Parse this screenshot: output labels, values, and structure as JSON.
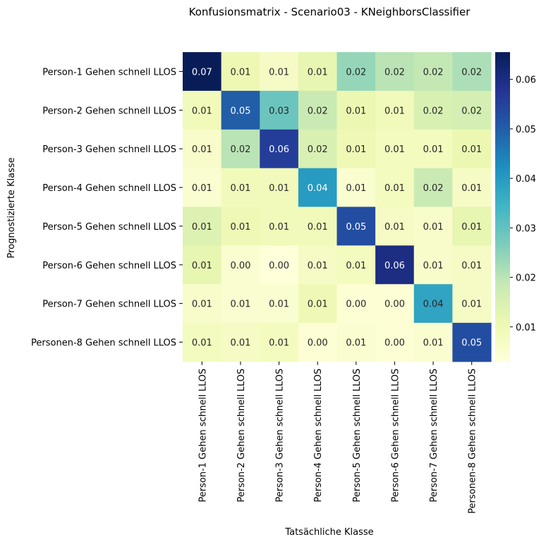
{
  "chart_data": {
    "type": "heatmap",
    "title": "Konfusionsmatrix - Scenario03 - KNeighborsClassifier",
    "xlabel": "Tatsächliche Klasse",
    "ylabel": "Prognostizierte Klasse",
    "x_categories": [
      "Person-1 Gehen schnell LLOS",
      "Person-2 Gehen schnell LLOS",
      "Person-3 Gehen schnell LLOS",
      "Person-4 Gehen schnell LLOS",
      "Person-5 Gehen schnell LLOS",
      "Person-6 Gehen schnell LLOS",
      "Person-7 Gehen schnell LLOS",
      "Personen-8 Gehen schnell LLOS"
    ],
    "y_categories": [
      "Person-1 Gehen schnell LLOS",
      "Person-2 Gehen schnell LLOS",
      "Person-3 Gehen schnell LLOS",
      "Person-4 Gehen schnell LLOS",
      "Person-5 Gehen schnell LLOS",
      "Person-6 Gehen schnell LLOS",
      "Person-7 Gehen schnell LLOS",
      "Personen-8 Gehen schnell LLOS"
    ],
    "values": [
      [
        0.0655,
        0.0105,
        0.007,
        0.012,
        0.024,
        0.02,
        0.019,
        0.0215
      ],
      [
        0.009,
        0.05,
        0.029,
        0.018,
        0.011,
        0.009,
        0.015,
        0.016
      ],
      [
        0.006,
        0.02,
        0.056,
        0.015,
        0.01,
        0.008,
        0.008,
        0.011
      ],
      [
        0.005,
        0.009,
        0.009,
        0.04,
        0.005,
        0.008,
        0.018,
        0.007
      ],
      [
        0.014,
        0.01,
        0.009,
        0.009,
        0.053,
        0.007,
        0.006,
        0.012
      ],
      [
        0.012,
        0.005,
        0.003,
        0.007,
        0.008,
        0.06,
        0.006,
        0.007
      ],
      [
        0.006,
        0.005,
        0.005,
        0.01,
        0.004,
        0.004,
        0.038,
        0.007
      ],
      [
        0.008,
        0.007,
        0.008,
        0.004,
        0.005,
        0.004,
        0.005,
        0.053
      ]
    ],
    "annotations": [
      [
        "0.07",
        "0.01",
        "0.01",
        "0.01",
        "0.02",
        "0.02",
        "0.02",
        "0.02"
      ],
      [
        "0.01",
        "0.05",
        "0.03",
        "0.02",
        "0.01",
        "0.01",
        "0.02",
        "0.02"
      ],
      [
        "0.01",
        "0.02",
        "0.06",
        "0.02",
        "0.01",
        "0.01",
        "0.01",
        "0.01"
      ],
      [
        "0.01",
        "0.01",
        "0.01",
        "0.04",
        "0.01",
        "0.01",
        "0.02",
        "0.01"
      ],
      [
        "0.01",
        "0.01",
        "0.01",
        "0.01",
        "0.05",
        "0.01",
        "0.01",
        "0.01"
      ],
      [
        "0.01",
        "0.00",
        "0.00",
        "0.01",
        "0.01",
        "0.06",
        "0.01",
        "0.01"
      ],
      [
        "0.01",
        "0.01",
        "0.01",
        "0.01",
        "0.00",
        "0.00",
        "0.04",
        "0.01"
      ],
      [
        "0.01",
        "0.01",
        "0.01",
        "0.00",
        "0.01",
        "0.00",
        "0.01",
        "0.05"
      ]
    ],
    "colormap": "YlGnBu",
    "color_range": [
      0.003,
      0.0655
    ],
    "colorbar_ticks": [
      0.01,
      0.02,
      0.03,
      0.04,
      0.05,
      0.06
    ],
    "colorbar_tick_labels": [
      "0.01",
      "0.02",
      "0.03",
      "0.04",
      "0.05",
      "0.06"
    ]
  }
}
